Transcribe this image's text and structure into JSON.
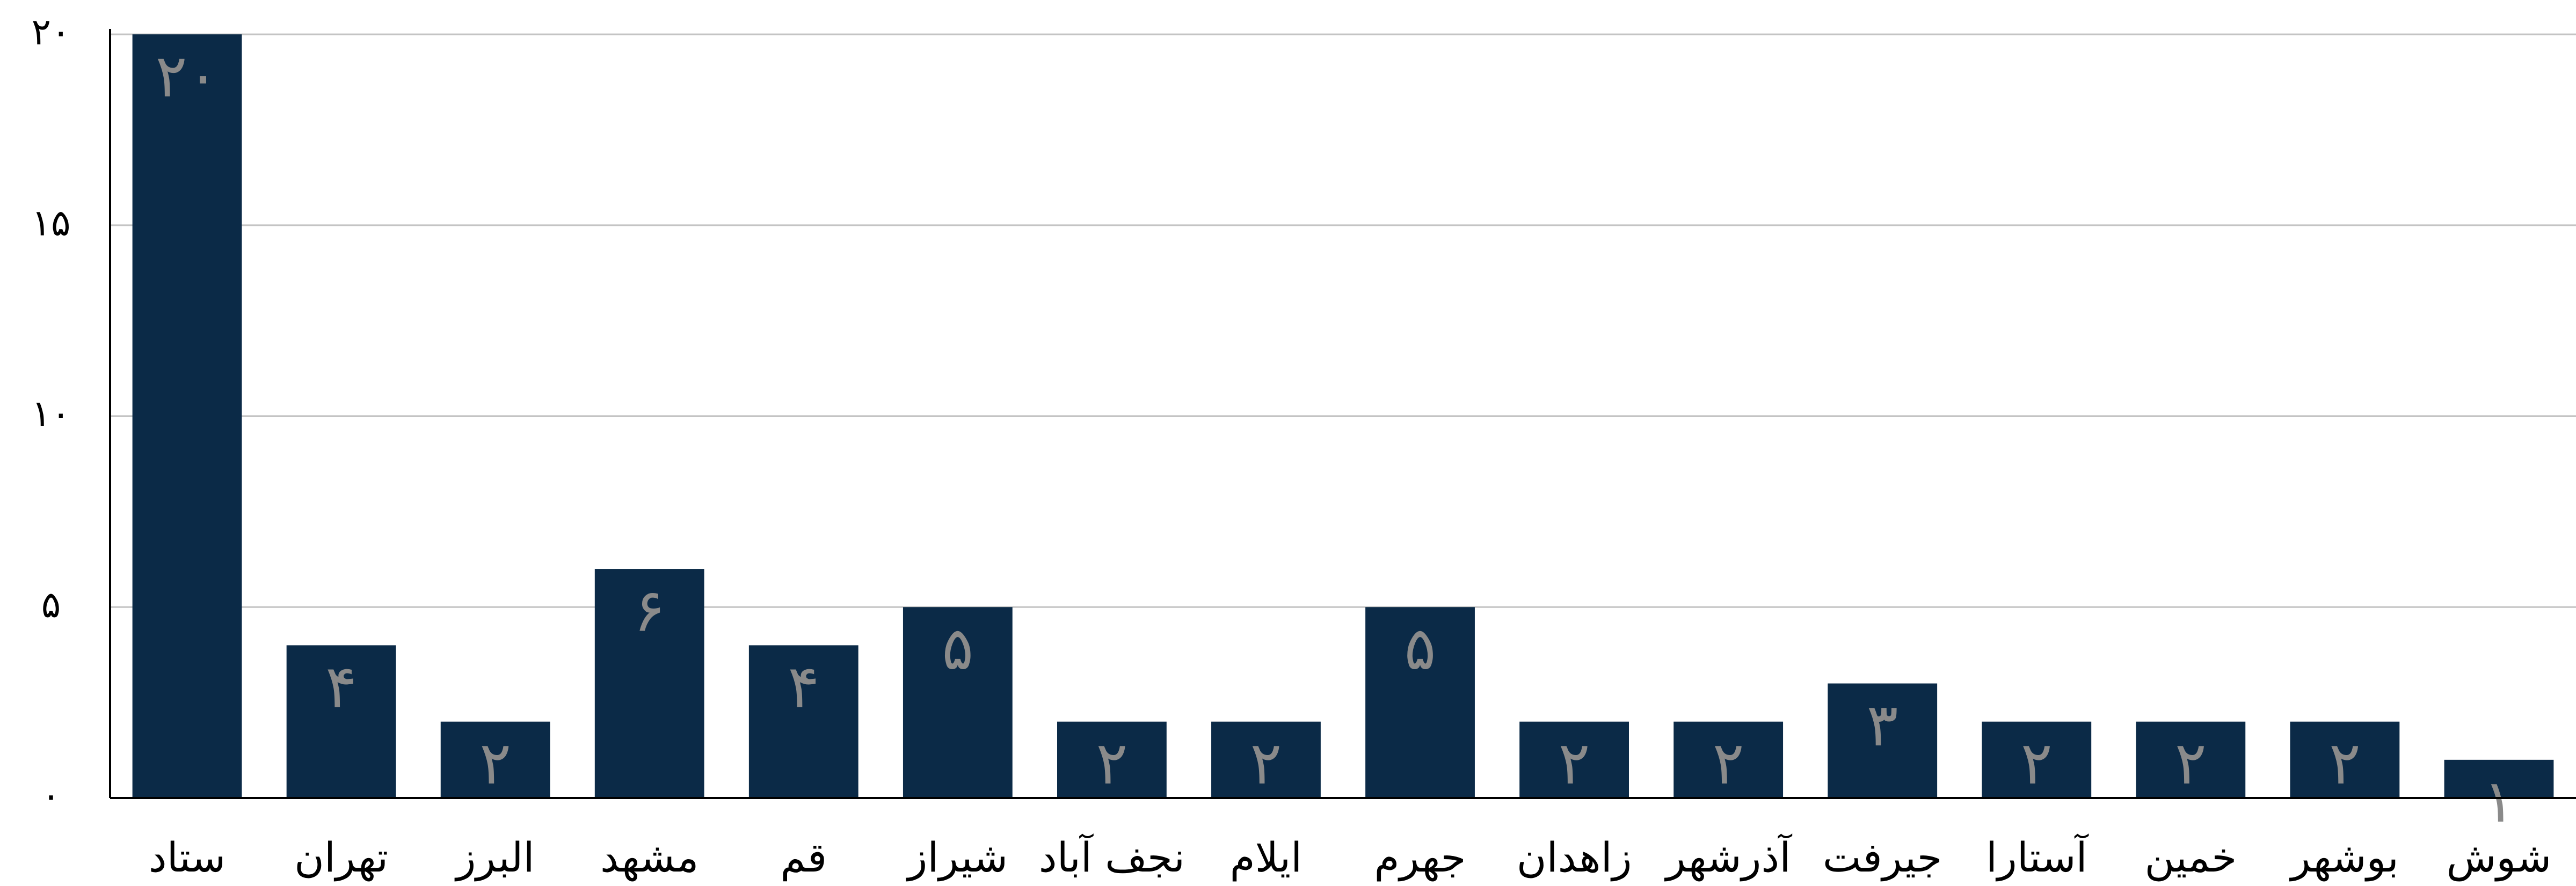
{
  "chart_data": {
    "type": "bar",
    "categories": [
      "ستاد",
      "تهران",
      "البرز",
      "مشهد",
      "قم",
      "شیراز",
      "نجف آباد",
      "ایلام",
      "جهرم",
      "زاهدان",
      "آذرشهر",
      "جیرفت",
      "آستارا",
      "خمین",
      "بوشهر",
      "شوش"
    ],
    "values": [
      20,
      4,
      2,
      6,
      4,
      5,
      2,
      2,
      5,
      2,
      2,
      3,
      2,
      2,
      2,
      1
    ],
    "value_labels": [
      "۲۰",
      "۴",
      "۲",
      "۶",
      "۴",
      "۵",
      "۲",
      "۲",
      "۵",
      "۲",
      "۲",
      "۳",
      "۲",
      "۲",
      "۲",
      "۱"
    ],
    "color": "#0b2a47",
    "ylim": [
      0,
      20
    ],
    "yticks": [
      {
        "value": 0,
        "label": "۰"
      },
      {
        "value": 5,
        "label": "۵"
      },
      {
        "value": 10,
        "label": "۱۰"
      },
      {
        "value": 15,
        "label": "۱۵"
      },
      {
        "value": 20,
        "label": "۲۰"
      }
    ],
    "grid": true
  }
}
